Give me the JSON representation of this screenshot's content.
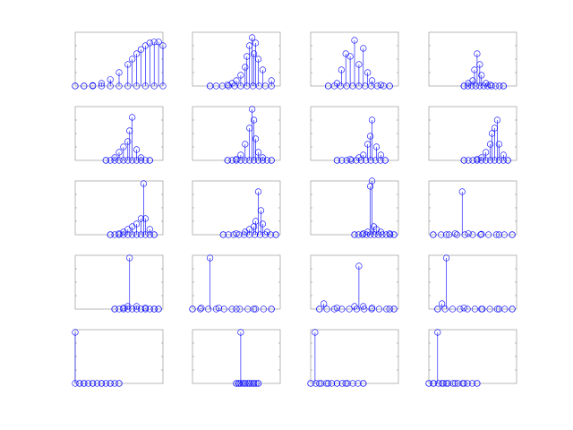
{
  "figure": {
    "background": "#ffffff",
    "axes_color": "#8a8a8a",
    "series_color": "#0000ff",
    "marker": "circle",
    "grid": false,
    "layout": {
      "rows": 5,
      "cols": 4
    }
  },
  "chart_data": [
    {
      "type": "stem",
      "title": "",
      "xlabel": "",
      "ylabel": "",
      "ylim": [
        0,
        1
      ],
      "x": [
        0.0,
        0.1,
        0.2,
        0.3,
        0.4,
        0.5,
        0.6,
        0.65,
        0.7,
        0.75,
        0.8,
        0.85,
        0.9,
        0.95,
        1.0
      ],
      "y": [
        0.0,
        0.0,
        0.01,
        0.05,
        0.12,
        0.25,
        0.4,
        0.5,
        0.6,
        0.68,
        0.75,
        0.8,
        0.82,
        0.82,
        0.75
      ]
    },
    {
      "type": "stem",
      "title": "",
      "xlabel": "",
      "ylabel": "",
      "ylim": [
        0,
        1
      ],
      "x": [
        0.2,
        0.4,
        0.45,
        0.5,
        0.55,
        0.6,
        0.62,
        0.65,
        0.68,
        0.7,
        0.72,
        0.75,
        0.8,
        0.9
      ],
      "y": [
        0.0,
        0.02,
        0.05,
        0.1,
        0.2,
        0.35,
        0.55,
        0.75,
        0.9,
        0.6,
        0.8,
        0.5,
        0.3,
        0.1
      ]
    },
    {
      "type": "stem",
      "title": "",
      "xlabel": "",
      "ylabel": "",
      "ylim": [
        0,
        1
      ],
      "x": [
        0.2,
        0.3,
        0.35,
        0.4,
        0.45,
        0.5,
        0.55,
        0.6,
        0.65,
        0.7,
        0.8,
        0.9
      ],
      "y": [
        0.0,
        0.05,
        0.3,
        0.6,
        0.55,
        0.85,
        0.4,
        0.7,
        0.25,
        0.1,
        0.02,
        0.0
      ],
      "note": ""
    },
    {
      "type": "stem",
      "title": "",
      "xlabel": "",
      "ylabel": "",
      "ylim": [
        0,
        1
      ],
      "x": [
        0.4,
        0.45,
        0.5,
        0.52,
        0.55,
        0.58,
        0.6,
        0.65,
        0.7,
        0.85
      ],
      "y": [
        0.0,
        0.05,
        0.1,
        0.3,
        0.6,
        0.4,
        0.2,
        0.05,
        0.02,
        0.0
      ]
    },
    {
      "type": "stem",
      "title": "",
      "xlabel": "",
      "ylabel": "",
      "ylim": [
        0,
        1
      ],
      "x": [
        0.35,
        0.45,
        0.5,
        0.55,
        0.6,
        0.62,
        0.65,
        0.7,
        0.75,
        0.85
      ],
      "y": [
        0.0,
        0.05,
        0.15,
        0.25,
        0.35,
        0.55,
        0.8,
        0.2,
        0.05,
        0.0
      ]
    },
    {
      "type": "stem",
      "title": "",
      "xlabel": "",
      "ylabel": "",
      "ylim": [
        0,
        1
      ],
      "x": [
        0.4,
        0.5,
        0.55,
        0.6,
        0.65,
        0.68,
        0.7,
        0.72,
        0.75,
        0.8,
        0.9
      ],
      "y": [
        0.0,
        0.02,
        0.1,
        0.3,
        0.6,
        0.95,
        0.75,
        0.4,
        0.15,
        0.05,
        0.0
      ]
    },
    {
      "type": "stem",
      "title": "",
      "xlabel": "",
      "ylabel": "",
      "ylim": [
        0,
        1
      ],
      "x": [
        0.3,
        0.45,
        0.55,
        0.6,
        0.65,
        0.68,
        0.7,
        0.75,
        0.8,
        0.85
      ],
      "y": [
        0.0,
        0.02,
        0.05,
        0.1,
        0.3,
        0.45,
        0.75,
        0.25,
        0.1,
        0.0
      ]
    },
    {
      "type": "stem",
      "title": "",
      "xlabel": "",
      "ylabel": "",
      "ylim": [
        0,
        1
      ],
      "x": [
        0.4,
        0.55,
        0.6,
        0.65,
        0.7,
        0.72,
        0.75,
        0.78,
        0.8,
        0.85,
        0.9
      ],
      "y": [
        0.0,
        0.02,
        0.05,
        0.15,
        0.3,
        0.5,
        0.6,
        0.75,
        0.3,
        0.1,
        0.0
      ]
    },
    {
      "type": "stem",
      "title": "",
      "xlabel": "",
      "ylabel": "",
      "ylim": [
        0,
        1
      ],
      "x": [
        0.4,
        0.5,
        0.55,
        0.6,
        0.65,
        0.7,
        0.75,
        0.78,
        0.8,
        0.85,
        0.9
      ],
      "y": [
        0.0,
        0.02,
        0.05,
        0.1,
        0.15,
        0.2,
        0.3,
        0.95,
        0.3,
        0.1,
        0.0
      ]
    },
    {
      "type": "stem",
      "title": "",
      "xlabel": "",
      "ylabel": "",
      "ylim": [
        0,
        1
      ],
      "x": [
        0.35,
        0.5,
        0.6,
        0.65,
        0.7,
        0.72,
        0.75,
        0.78,
        0.8,
        0.85,
        0.95
      ],
      "y": [
        0.0,
        0.02,
        0.05,
        0.1,
        0.15,
        0.25,
        0.8,
        0.45,
        0.2,
        0.05,
        0.0
      ]
    },
    {
      "type": "stem",
      "title": "",
      "xlabel": "",
      "ylabel": "",
      "ylim": [
        0,
        1
      ],
      "x": [
        0.5,
        0.6,
        0.65,
        0.68,
        0.7,
        0.72,
        0.75,
        0.8,
        0.9,
        0.95
      ],
      "y": [
        0.0,
        0.02,
        0.05,
        0.9,
        1.0,
        0.15,
        0.1,
        0.05,
        0.02,
        0.0
      ]
    },
    {
      "type": "stem",
      "title": "",
      "xlabel": "",
      "ylabel": "",
      "ylim": [
        0,
        1
      ],
      "x": [
        0.05,
        0.2,
        0.3,
        0.38,
        0.45,
        0.6,
        0.8,
        0.95
      ],
      "y": [
        0.0,
        0.0,
        0.02,
        0.8,
        0.02,
        0.01,
        0.0,
        0.0
      ]
    },
    {
      "type": "stem",
      "title": "",
      "xlabel": "",
      "ylabel": "",
      "ylim": [
        0,
        1
      ],
      "x": [
        0.45,
        0.55,
        0.6,
        0.62,
        0.7,
        0.8,
        0.9,
        0.95
      ],
      "y": [
        0.0,
        0.02,
        0.05,
        0.95,
        0.05,
        0.02,
        0.0,
        0.0
      ]
    },
    {
      "type": "stem",
      "title": "",
      "xlabel": "",
      "ylabel": "",
      "ylim": [
        0,
        1
      ],
      "x": [
        0.0,
        0.1,
        0.2,
        0.3,
        0.5,
        0.7,
        0.9
      ],
      "y": [
        0.0,
        0.02,
        0.95,
        0.02,
        0.0,
        0.0,
        0.0
      ]
    },
    {
      "type": "stem",
      "title": "",
      "xlabel": "",
      "ylabel": "",
      "ylim": [
        0,
        1
      ],
      "x": [
        0.1,
        0.15,
        0.3,
        0.5,
        0.55,
        0.6,
        0.7,
        0.9,
        0.95
      ],
      "y": [
        0.0,
        0.1,
        0.02,
        0.05,
        0.8,
        0.05,
        0.02,
        0.0,
        0.0
      ]
    },
    {
      "type": "stem",
      "title": "",
      "xlabel": "",
      "ylabel": "",
      "ylim": [
        0,
        1
      ],
      "x": [
        0.1,
        0.15,
        0.2,
        0.4,
        0.6,
        0.8,
        0.95
      ],
      "y": [
        0.0,
        0.1,
        0.95,
        0.02,
        0.0,
        0.0,
        0.0
      ]
    },
    {
      "type": "stem",
      "title": "",
      "xlabel": "",
      "ylabel": "",
      "ylim": [
        0,
        1
      ],
      "x": [
        0.0,
        0.05,
        0.1,
        0.2,
        0.3,
        0.4,
        0.5
      ],
      "y": [
        0.95,
        0.0,
        0.0,
        0.0,
        0.0,
        0.0,
        0.0
      ]
    },
    {
      "type": "stem",
      "title": "",
      "xlabel": "",
      "ylabel": "",
      "ylim": [
        0,
        1
      ],
      "x": [
        0.5,
        0.53,
        0.55,
        0.6,
        0.65,
        0.7,
        0.75
      ],
      "y": [
        0.0,
        0.0,
        0.95,
        0.0,
        0.0,
        0.0,
        0.0
      ]
    },
    {
      "type": "stem",
      "title": "",
      "xlabel": "",
      "ylabel": "",
      "ylim": [
        0,
        1
      ],
      "x": [
        0.0,
        0.05,
        0.1,
        0.2,
        0.3,
        0.4,
        0.6
      ],
      "y": [
        0.0,
        0.95,
        0.0,
        0.0,
        0.0,
        0.0,
        0.0
      ]
    },
    {
      "type": "stem",
      "title": "",
      "xlabel": "",
      "ylabel": "",
      "ylim": [
        0,
        1
      ],
      "x": [
        0.0,
        0.05,
        0.1,
        0.15,
        0.2,
        0.3,
        0.4,
        0.55
      ],
      "y": [
        0.0,
        0.0,
        0.95,
        0.0,
        0.0,
        0.0,
        0.0,
        0.0
      ]
    }
  ]
}
